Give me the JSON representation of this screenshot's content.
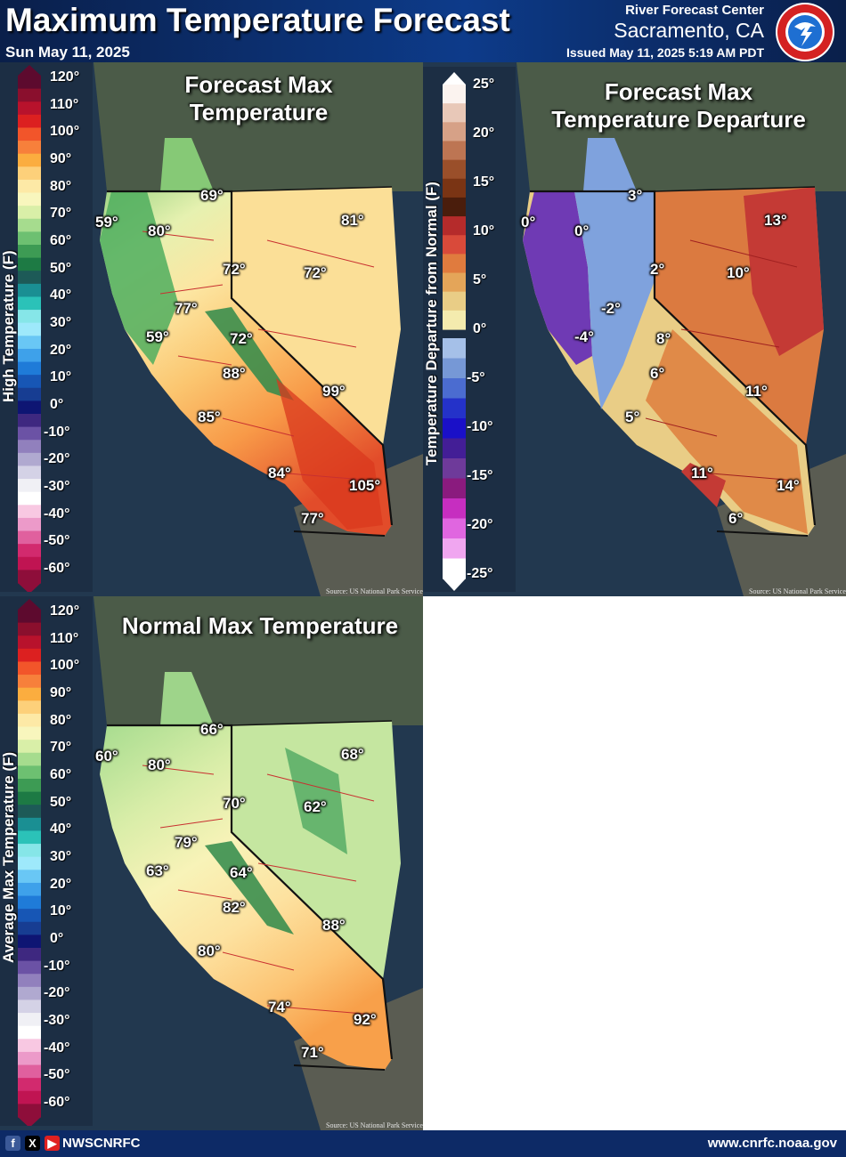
{
  "header": {
    "title": "Maximum Temperature Forecast",
    "date": "Sun May 11, 2025",
    "rfc": "River Forecast Center",
    "city": "Sacramento, CA",
    "issued": "Issued May 11, 2025 5:19 AM PDT",
    "logo_text": "NATIONAL WEATHER SERVICE"
  },
  "source_note": "Source: US National Park Service",
  "temp_legend": {
    "ticks": [
      "120°",
      "110°",
      "100°",
      "90°",
      "80°",
      "70°",
      "60°",
      "50°",
      "40°",
      "30°",
      "20°",
      "10°",
      "0°",
      "-10°",
      "-20°",
      "-30°",
      "-40°",
      "-50°",
      "-60°"
    ],
    "colors": [
      "#5d0a2e",
      "#8a0f2d",
      "#b8122c",
      "#dc2020",
      "#f2552a",
      "#f7803b",
      "#fbad3f",
      "#fdd07a",
      "#fde9a6",
      "#f8f6bd",
      "#d9efa8",
      "#a6dc8e",
      "#6dc071",
      "#3d9b54",
      "#1d7a44",
      "#1d5a57",
      "#1a8f93",
      "#2bc2b8",
      "#86e6e8",
      "#9ee9fb",
      "#69c7f5",
      "#3ea1ea",
      "#1f7bd8",
      "#1756b5",
      "#173d92",
      "#0e1573",
      "#3e2880",
      "#6b52a5",
      "#9180bd",
      "#b0a9d0",
      "#d4d2e6",
      "#f0f0f5",
      "#ffffff",
      "#f8c8e2",
      "#ec9ac9",
      "#e0609e",
      "#d22a6e",
      "#c01452",
      "#8e0e3a"
    ]
  },
  "departure_legend": {
    "ticks": [
      "25°",
      "20°",
      "15°",
      "10°",
      "5°",
      "0°",
      "-5°",
      "-10°",
      "-15°",
      "-20°",
      "-25°"
    ],
    "colors_pos": [
      "#fbf3ef",
      "#e8c8b8",
      "#d6a187",
      "#bd7553",
      "#9a4f2a",
      "#7a3414",
      "#4a1d0c",
      "#b52b2b",
      "#d94a3a",
      "#e07b3e",
      "#e4a559",
      "#e9cd86",
      "#f4ebae"
    ],
    "colors_neg": [
      "#a5c0e8",
      "#7698d6",
      "#4b6cd0",
      "#2432c9",
      "#1a10c8",
      "#431e96",
      "#6e3a9a",
      "#8a1b7e",
      "#c62ec0",
      "#e066e0",
      "#f0a6f0",
      "#ffffff"
    ]
  },
  "panels": {
    "forecast": {
      "title_line1": "Forecast Max",
      "title_line2": "Temperature",
      "legend_title": "High Temperature (F)",
      "labels": [
        "69°",
        "59°",
        "80°",
        "81°",
        "72°",
        "72°",
        "77°",
        "59°",
        "72°",
        "88°",
        "99°",
        "85°",
        "84°",
        "105°",
        "77°"
      ]
    },
    "departure": {
      "title_line1": "Forecast Max",
      "title_line2": "Temperature Departure",
      "legend_title": "Temperature Departure from Normal (F)",
      "labels": [
        "3°",
        "0°",
        "0°",
        "13°",
        "2°",
        "10°",
        "-2°",
        "-4°",
        "8°",
        "6°",
        "11°",
        "5°",
        "11°",
        "14°",
        "6°"
      ]
    },
    "normal": {
      "title": "Normal Max Temperature",
      "legend_title": "Average Max Temperature (F)",
      "labels": [
        "66°",
        "60°",
        "80°",
        "68°",
        "70°",
        "62°",
        "79°",
        "63°",
        "64°",
        "82°",
        "88°",
        "80°",
        "74°",
        "92°",
        "71°"
      ]
    }
  },
  "footer": {
    "handle": "NWSCNRFC",
    "website": "www.cnrfc.noaa.gov"
  }
}
